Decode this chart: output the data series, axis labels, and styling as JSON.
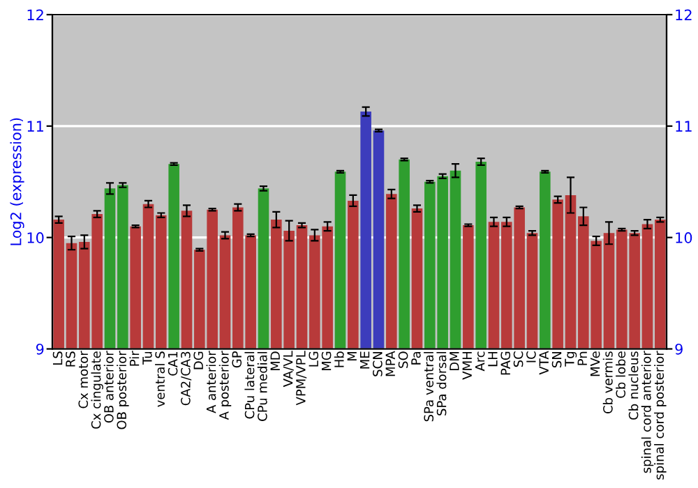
{
  "chart_data": {
    "type": "bar",
    "ylabel": "Log2 (expression)",
    "categories": [
      "LS",
      "RS",
      "Cx motor",
      "Cx cingulate",
      "OB anterior",
      "OB posterior",
      "Pir",
      "Tu",
      "ventral S",
      "CA1",
      "CA2/CA3",
      "DG",
      "A anterior",
      "A posterior",
      "GP",
      "CPu lateral",
      "CPu medial",
      "MD",
      "VA/VL",
      "VPM/VPL",
      "LG",
      "MG",
      "Hb",
      "M",
      "ME",
      "SCN",
      "MPA",
      "SO",
      "Pa",
      "SPa ventral",
      "SPa dorsal",
      "DM",
      "VMH",
      "Arc",
      "LH",
      "PAG",
      "SC",
      "IC",
      "VTA",
      "SN",
      "Tg",
      "Pn",
      "MVe",
      "Cb vermis",
      "Cb lobe",
      "Cb nucleus",
      "spinal cord anterior",
      "spinal cord posterior"
    ],
    "values": [
      10.16,
      9.95,
      9.96,
      10.21,
      10.44,
      10.47,
      10.1,
      10.3,
      10.2,
      10.66,
      10.24,
      9.89,
      10.25,
      10.02,
      10.27,
      10.02,
      10.44,
      10.16,
      10.06,
      10.11,
      10.02,
      10.1,
      10.59,
      10.33,
      11.13,
      10.96,
      10.39,
      10.7,
      10.26,
      10.5,
      10.55,
      10.6,
      10.11,
      10.68,
      10.14,
      10.14,
      10.27,
      10.04,
      10.59,
      10.34,
      10.38,
      10.19,
      9.97,
      10.04,
      10.07,
      10.04,
      10.12,
      10.16
    ],
    "errors": [
      0.03,
      0.06,
      0.06,
      0.03,
      0.05,
      0.02,
      0.01,
      0.03,
      0.02,
      0.01,
      0.05,
      0.01,
      0.01,
      0.03,
      0.03,
      0.01,
      0.02,
      0.07,
      0.09,
      0.02,
      0.05,
      0.04,
      0.01,
      0.05,
      0.04,
      0.01,
      0.04,
      0.01,
      0.03,
      0.01,
      0.02,
      0.06,
      0.01,
      0.03,
      0.04,
      0.04,
      0.01,
      0.02,
      0.01,
      0.03,
      0.16,
      0.08,
      0.04,
      0.1,
      0.01,
      0.02,
      0.04,
      0.02
    ],
    "colors": [
      "#b83a3a",
      "#b83a3a",
      "#b83a3a",
      "#b83a3a",
      "#2f9e2f",
      "#2f9e2f",
      "#b83a3a",
      "#b83a3a",
      "#b83a3a",
      "#2f9e2f",
      "#b83a3a",
      "#b83a3a",
      "#b83a3a",
      "#b83a3a",
      "#b83a3a",
      "#b83a3a",
      "#2f9e2f",
      "#b83a3a",
      "#b83a3a",
      "#b83a3a",
      "#b83a3a",
      "#b83a3a",
      "#2f9e2f",
      "#b83a3a",
      "#3c3cbc",
      "#3c3cbc",
      "#b83a3a",
      "#2f9e2f",
      "#b83a3a",
      "#2f9e2f",
      "#2f9e2f",
      "#2f9e2f",
      "#b83a3a",
      "#2f9e2f",
      "#b83a3a",
      "#b83a3a",
      "#b83a3a",
      "#b83a3a",
      "#2f9e2f",
      "#b83a3a",
      "#b83a3a",
      "#b83a3a",
      "#b83a3a",
      "#b83a3a",
      "#b83a3a",
      "#b83a3a",
      "#b83a3a",
      "#b83a3a"
    ],
    "ylim": [
      9,
      12
    ],
    "yticks": [
      9,
      10,
      11,
      12
    ],
    "y2lim": [
      9,
      12
    ],
    "y2ticks": [
      9,
      10,
      11,
      12
    ],
    "grid": "y"
  }
}
